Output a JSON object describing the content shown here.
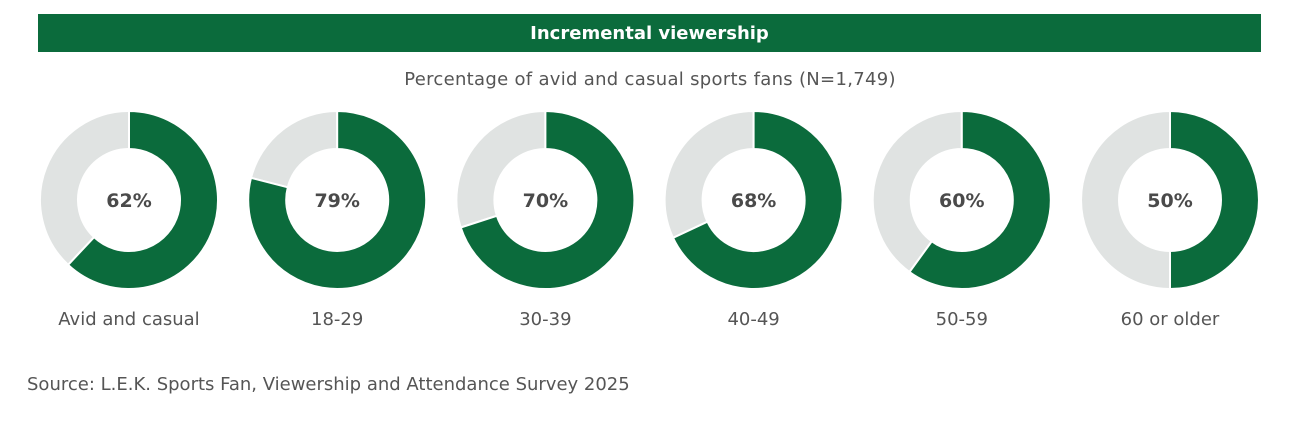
{
  "chart_data": {
    "type": "donut",
    "title": "Incremental viewership",
    "subtitle": "Percentage of avid and casual sports fans (N=1,749)",
    "categories": [
      "Avid and casual",
      "18-29",
      "30-39",
      "40-49",
      "50-59",
      "60 or older"
    ],
    "values": [
      62,
      79,
      70,
      68,
      60,
      50
    ],
    "value_labels": [
      "62%",
      "79%",
      "70%",
      "68%",
      "60%",
      "50%"
    ],
    "unit": "%",
    "colors": {
      "value": "#0b6b3c",
      "remainder": "#e0e3e2"
    }
  },
  "source": "Source: L.E.K. Sports Fan, Viewership and Attendance Survey 2025"
}
